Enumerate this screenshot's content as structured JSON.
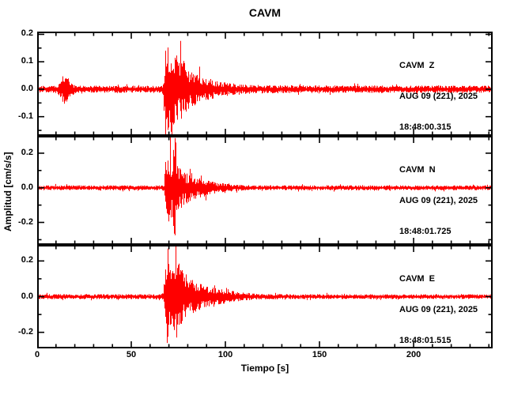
{
  "title": "CAVM",
  "colors": {
    "trace": "#ff0000",
    "frame": "#000000",
    "background": "#ffffff"
  },
  "chart_data": {
    "type": "line",
    "title": "CAVM",
    "xlabel": "Tiempo [s]",
    "ylabel": "Amplitud [cm/s/s]",
    "xlim": [
      0,
      242
    ],
    "x_major_ticks": [
      0,
      50,
      100,
      150,
      200
    ],
    "x_minor_step": 10,
    "grid": false,
    "legend": "none",
    "panels": [
      {
        "station_component": "CAVM  Z",
        "date": "AUG 09 (221), 2025",
        "time": "18:48:00.315",
        "ylim": [
          -0.17,
          0.21
        ],
        "y_major_ticks": [
          -0.1,
          0.0,
          0.1,
          0.2
        ],
        "y_minor_step": 0.05,
        "noise_amplitude": 0.013,
        "envelope": [
          [
            0,
            0.013
          ],
          [
            10,
            0.014
          ],
          [
            11,
            0.018
          ],
          [
            13,
            0.042
          ],
          [
            14,
            0.055
          ],
          [
            16,
            0.048
          ],
          [
            18,
            0.028
          ],
          [
            20,
            0.016
          ],
          [
            22,
            0.013
          ],
          [
            65,
            0.013
          ],
          [
            67,
            0.02
          ],
          [
            67.8,
            0.09
          ],
          [
            68.3,
            0.21
          ],
          [
            69,
            0.16
          ],
          [
            69.8,
            0.2
          ],
          [
            70.5,
            0.14
          ],
          [
            71.5,
            0.19
          ],
          [
            72.5,
            0.13
          ],
          [
            74,
            0.15
          ],
          [
            75.5,
            0.1
          ],
          [
            77,
            0.12
          ],
          [
            79,
            0.085
          ],
          [
            81,
            0.07
          ],
          [
            84,
            0.06
          ],
          [
            87,
            0.05
          ],
          [
            90,
            0.042
          ],
          [
            94,
            0.034
          ],
          [
            98,
            0.027
          ],
          [
            103,
            0.022
          ],
          [
            110,
            0.018
          ],
          [
            120,
            0.015
          ],
          [
            140,
            0.014
          ],
          [
            242,
            0.013
          ]
        ]
      },
      {
        "station_component": "CAVM  N",
        "date": "AUG 09 (221), 2025",
        "time": "18:48:01.725",
        "ylim": [
          -0.33,
          0.3
        ],
        "y_major_ticks": [
          -0.2,
          0.0,
          0.2
        ],
        "y_minor_step": 0.1,
        "noise_amplitude": 0.014,
        "envelope": [
          [
            0,
            0.014
          ],
          [
            66,
            0.014
          ],
          [
            67.5,
            0.02
          ],
          [
            68.2,
            0.15
          ],
          [
            68.8,
            0.28
          ],
          [
            69.6,
            0.22
          ],
          [
            70.5,
            0.26
          ],
          [
            71.5,
            0.18
          ],
          [
            72.8,
            0.3
          ],
          [
            73.5,
            0.33
          ],
          [
            74.5,
            0.16
          ],
          [
            76,
            0.13
          ],
          [
            78,
            0.1
          ],
          [
            80,
            0.085
          ],
          [
            83,
            0.07
          ],
          [
            86,
            0.06
          ],
          [
            89,
            0.05
          ],
          [
            92,
            0.04
          ],
          [
            96,
            0.03
          ],
          [
            100,
            0.024
          ],
          [
            106,
            0.018
          ],
          [
            112,
            0.015
          ],
          [
            120,
            0.014
          ],
          [
            242,
            0.014
          ]
        ]
      },
      {
        "station_component": "CAVM  E",
        "date": "AUG 09 (221), 2025",
        "time": "18:48:01.515",
        "ylim": [
          -0.29,
          0.29
        ],
        "y_major_ticks": [
          -0.2,
          0.0,
          0.2
        ],
        "y_minor_step": 0.1,
        "noise_amplitude": 0.014,
        "envelope": [
          [
            0,
            0.014
          ],
          [
            66,
            0.014
          ],
          [
            67,
            0.03
          ],
          [
            67.8,
            0.13
          ],
          [
            68.5,
            0.24
          ],
          [
            69.5,
            0.28
          ],
          [
            70.5,
            0.22
          ],
          [
            71.5,
            0.26
          ],
          [
            73,
            0.2
          ],
          [
            74.5,
            0.27
          ],
          [
            76,
            0.17
          ],
          [
            78,
            0.14
          ],
          [
            80,
            0.12
          ],
          [
            82,
            0.1
          ],
          [
            85,
            0.085
          ],
          [
            88,
            0.07
          ],
          [
            91,
            0.06
          ],
          [
            94,
            0.05
          ],
          [
            98,
            0.042
          ],
          [
            102,
            0.034
          ],
          [
            106,
            0.028
          ],
          [
            110,
            0.022
          ],
          [
            115,
            0.018
          ],
          [
            122,
            0.015
          ],
          [
            135,
            0.014
          ],
          [
            242,
            0.013
          ]
        ]
      }
    ]
  }
}
